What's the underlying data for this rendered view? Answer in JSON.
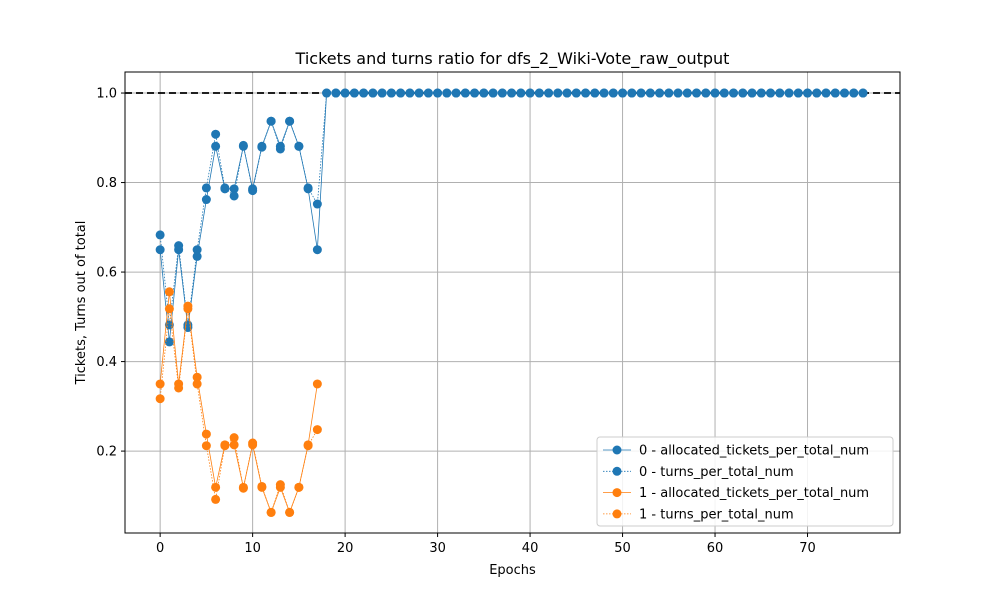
{
  "chart_data": {
    "type": "line",
    "title": "Tickets and turns ratio for dfs_2_Wiki-Vote_raw_output",
    "xlabel": "Epochs",
    "ylabel": "Tickets, Turns out of total",
    "xlim": [
      -3.8,
      80
    ],
    "ylim": [
      0.017,
      1.047
    ],
    "xticks": [
      0,
      10,
      20,
      30,
      40,
      50,
      60,
      70
    ],
    "yticks": [
      0.2,
      0.4,
      0.6,
      0.8,
      1.0
    ],
    "ytick_labels": [
      "0.2",
      "0.4",
      "0.6",
      "0.8",
      "1.0"
    ],
    "grid": true,
    "legend_position": "lower-right",
    "reference_line": {
      "y": 1.0,
      "style": "dashed",
      "color": "#000000"
    },
    "series": [
      {
        "name": "0 - allocated_tickets_per_total_num",
        "color": "#1f77b4",
        "style": "solid",
        "x": [
          0,
          1,
          2,
          3,
          4,
          5,
          6,
          7,
          8,
          9,
          10,
          11,
          12,
          13,
          14,
          15,
          16,
          17,
          18,
          19,
          20,
          21,
          22,
          23,
          24,
          25,
          26,
          27,
          28,
          29,
          30,
          31,
          32,
          33,
          34,
          35,
          36,
          37,
          38,
          39,
          40,
          41,
          42,
          43,
          44,
          45,
          46,
          47,
          48,
          49,
          50,
          51,
          52,
          53,
          54,
          55,
          56,
          57,
          58,
          59,
          60,
          61,
          62,
          63,
          64,
          65,
          66,
          67,
          68,
          69,
          70,
          71,
          72,
          73,
          74,
          75,
          76
        ],
        "y": [
          0.65,
          0.444,
          0.65,
          0.476,
          0.635,
          0.762,
          0.881,
          0.786,
          0.786,
          0.881,
          0.786,
          0.881,
          0.937,
          0.881,
          0.937,
          0.881,
          0.786,
          0.65,
          1,
          1,
          1,
          1,
          1,
          1,
          1,
          1,
          1,
          1,
          1,
          1,
          1,
          1,
          1,
          1,
          1,
          1,
          1,
          1,
          1,
          1,
          1,
          1,
          1,
          1,
          1,
          1,
          1,
          1,
          1,
          1,
          1,
          1,
          1,
          1,
          1,
          1,
          1,
          1,
          1,
          1,
          1,
          1,
          1,
          1,
          1,
          1,
          1,
          1,
          1,
          1,
          1,
          1,
          1,
          1,
          1,
          1,
          1
        ]
      },
      {
        "name": "0 - turns_per_total_num",
        "color": "#1f77b4",
        "style": "dotted",
        "x": [
          0,
          1,
          2,
          3,
          4,
          5,
          6,
          7,
          8,
          9,
          10,
          11,
          12,
          13,
          14,
          15,
          16,
          17,
          18,
          19,
          20,
          21,
          22,
          23,
          24,
          25,
          26,
          27,
          28,
          29,
          30,
          31,
          32,
          33,
          34,
          35,
          36,
          37,
          38,
          39,
          40,
          41,
          42,
          43,
          44,
          45,
          46,
          47,
          48,
          49,
          50,
          51,
          52,
          53,
          54,
          55,
          56,
          57,
          58,
          59,
          60,
          61,
          62,
          63,
          64,
          65,
          66,
          67,
          68,
          69,
          70,
          71,
          72,
          73,
          74,
          75,
          76
        ],
        "y": [
          0.683,
          0.482,
          0.659,
          0.482,
          0.65,
          0.788,
          0.908,
          0.788,
          0.77,
          0.883,
          0.782,
          0.879,
          0.937,
          0.875,
          0.937,
          0.881,
          0.788,
          0.752,
          1,
          1,
          1,
          1,
          1,
          1,
          1,
          1,
          1,
          1,
          1,
          1,
          1,
          1,
          1,
          1,
          1,
          1,
          1,
          1,
          1,
          1,
          1,
          1,
          1,
          1,
          1,
          1,
          1,
          1,
          1,
          1,
          1,
          1,
          1,
          1,
          1,
          1,
          1,
          1,
          1,
          1,
          1,
          1,
          1,
          1,
          1,
          1,
          1,
          1,
          1,
          1,
          1,
          1,
          1,
          1,
          1,
          1,
          1
        ]
      },
      {
        "name": "1 - allocated_tickets_per_total_num",
        "color": "#ff7f0e",
        "style": "solid",
        "x": [
          0,
          1,
          2,
          3,
          4,
          5,
          6,
          7,
          8,
          9,
          10,
          11,
          12,
          13,
          14,
          15,
          16,
          17
        ],
        "y": [
          0.35,
          0.556,
          0.35,
          0.524,
          0.365,
          0.238,
          0.119,
          0.214,
          0.214,
          0.119,
          0.214,
          0.119,
          0.063,
          0.119,
          0.063,
          0.119,
          0.214,
          0.35
        ]
      },
      {
        "name": "1 - turns_per_total_num",
        "color": "#ff7f0e",
        "style": "dotted",
        "x": [
          0,
          1,
          2,
          3,
          4,
          5,
          6,
          7,
          8,
          9,
          10,
          11,
          12,
          13,
          14,
          15,
          16,
          17
        ],
        "y": [
          0.317,
          0.518,
          0.341,
          0.518,
          0.35,
          0.212,
          0.092,
          0.212,
          0.23,
          0.117,
          0.218,
          0.121,
          0.063,
          0.125,
          0.063,
          0.119,
          0.212,
          0.248
        ]
      }
    ]
  }
}
